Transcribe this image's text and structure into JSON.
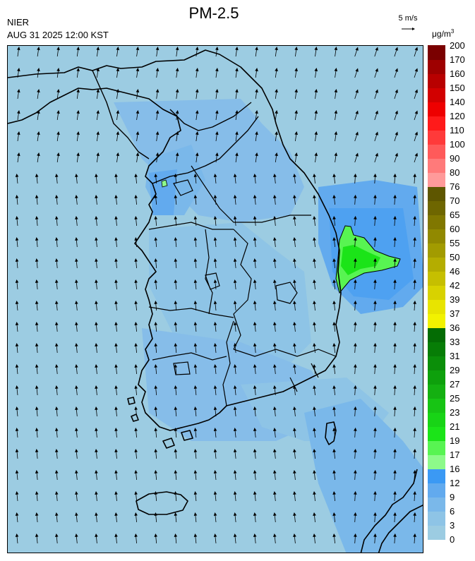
{
  "header": {
    "title": "PM-2.5",
    "agency": "NIER",
    "timestamp": "AUG 31 2025 12:00 KST",
    "wind_scale_label": "5 m/s",
    "unit_label": "μg/m",
    "unit_exponent": "3"
  },
  "legend": {
    "ticks": [
      "0",
      "3",
      "6",
      "9",
      "12",
      "16",
      "17",
      "19",
      "21",
      "23",
      "25",
      "27",
      "29",
      "31",
      "33",
      "36",
      "37",
      "39",
      "42",
      "46",
      "50",
      "55",
      "60",
      "65",
      "70",
      "76",
      "80",
      "90",
      "100",
      "110",
      "120",
      "140",
      "150",
      "160",
      "170",
      "200"
    ],
    "colors": [
      "#9ccce2",
      "#8ec4e6",
      "#7ab8ea",
      "#62aaee",
      "#3b99f4",
      "#8dfa8a",
      "#58f452",
      "#1be418",
      "#18d416",
      "#17c414",
      "#14b011",
      "#0ea00c",
      "#0b8e09",
      "#077d06",
      "#046c04",
      "#f2f200",
      "#e8e400",
      "#d8d200",
      "#c6bf00",
      "#b4ad00",
      "#a29b00",
      "#918900",
      "#807700",
      "#6e6600",
      "#5e5600",
      "#ff9a9a",
      "#ff7a7a",
      "#ff5a5a",
      "#ff3a3a",
      "#ff1a1a",
      "#ee0000",
      "#d20000",
      "#b80000",
      "#9e0000",
      "#7a0000"
    ]
  },
  "map": {
    "background_color": "#9ccce2",
    "boundary_color": "#000000",
    "pollution_hotspot": "green patch (16–21 μg/m³) off east coast near Pohang",
    "wind_direction": "mostly northward, slightly north-northwest"
  }
}
